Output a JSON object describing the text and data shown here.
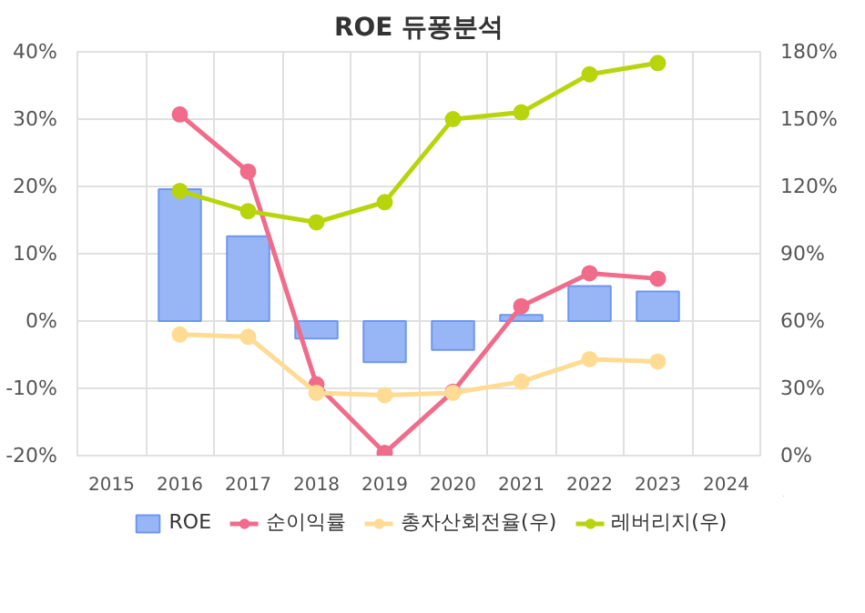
{
  "chart_data": {
    "type": "bar",
    "title": "ROE 듀퐁분석",
    "categories": [
      "2015",
      "2016",
      "2017",
      "2018",
      "2019",
      "2020",
      "2021",
      "2022",
      "2023",
      "2024"
    ],
    "series": [
      {
        "name": "ROE",
        "color": "#98b6f5",
        "values": [
          null,
          19.6,
          12.6,
          -2.6,
          -6.1,
          -4.3,
          0.9,
          5.2,
          4.4,
          null
        ]
      },
      {
        "name": "순이익률",
        "type": "line",
        "color": "#f06c8a",
        "values": [
          null,
          30.7,
          22.2,
          -9.4,
          -19.6,
          -10.5,
          2.2,
          7.1,
          6.3,
          null
        ]
      },
      {
        "name": "총자산회전율(우)",
        "type": "line",
        "axis": "y2",
        "color": "#ffdb94",
        "values": [
          null,
          54,
          53,
          28,
          27,
          28,
          33,
          43,
          42,
          null
        ]
      },
      {
        "name": "레버리지(우)",
        "type": "line",
        "axis": "y2",
        "color": "#b8d40b",
        "values": [
          null,
          118,
          109,
          104,
          113,
          150,
          153,
          170,
          175,
          null
        ]
      }
    ],
    "ylim": [
      -20,
      40
    ],
    "yticks": [
      {
        "value": -20,
        "label": "-20%"
      },
      {
        "value": -10,
        "label": "-10%"
      },
      {
        "value": 0,
        "label": "0%"
      },
      {
        "value": 10,
        "label": "10%"
      },
      {
        "value": 20,
        "label": "20%"
      },
      {
        "value": 30,
        "label": "30%"
      },
      {
        "value": 40,
        "label": "40%"
      }
    ],
    "y2lim": [
      0,
      180
    ],
    "y2ticks": [
      {
        "value": 0,
        "label": "0%"
      },
      {
        "value": 30,
        "label": "30%"
      },
      {
        "value": 60,
        "label": "60%"
      },
      {
        "value": 90,
        "label": "90%"
      },
      {
        "value": 120,
        "label": "120%"
      },
      {
        "value": 150,
        "label": "150%"
      },
      {
        "value": 180,
        "label": "180%"
      }
    ],
    "grid": true,
    "legend": "bottom",
    "marker": "circle"
  }
}
